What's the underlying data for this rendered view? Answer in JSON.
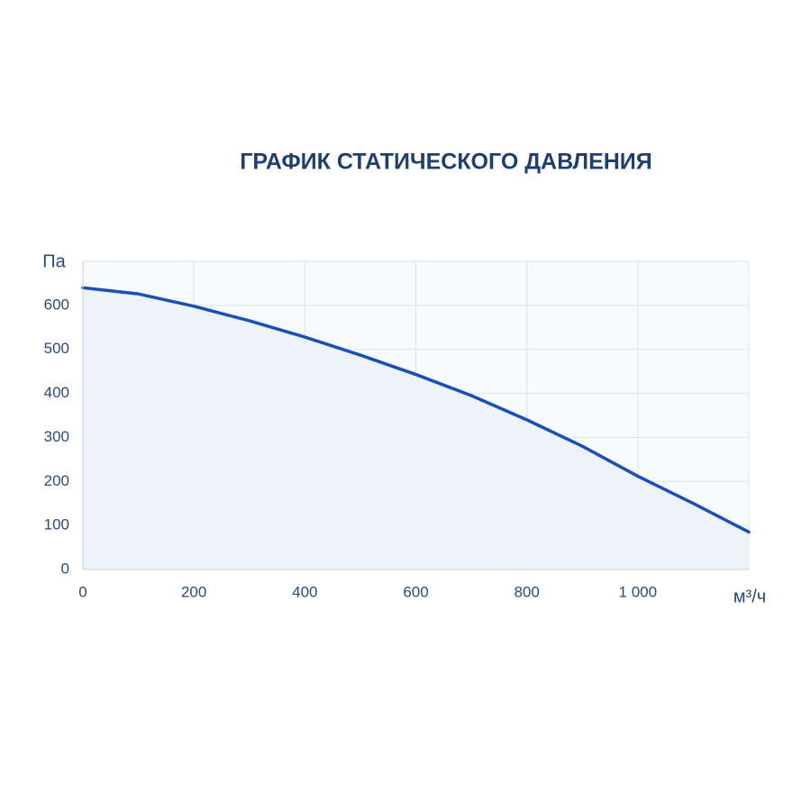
{
  "chart_data": {
    "type": "line",
    "title": "ГРАФИК СТАТИЧЕСКОГО ДАВЛЕНИЯ",
    "y_label": "Па",
    "x_label": "м³/ч",
    "x": [
      0,
      100,
      200,
      300,
      400,
      500,
      600,
      700,
      800,
      900,
      1000,
      1100,
      1200
    ],
    "series": [
      {
        "color": "#1a4fb5",
        "values": [
          640,
          626,
          598,
          565,
          528,
          487,
          443,
          395,
          340,
          280,
          212,
          150,
          85
        ]
      }
    ],
    "xlim": [
      0,
      1200
    ],
    "xticks": [
      0,
      200,
      400,
      600,
      800,
      {
        "value": 1000,
        "label": "1 000"
      }
    ],
    "ylim": [
      0,
      700
    ],
    "yticks": [
      0,
      100,
      200,
      300,
      400,
      500,
      600
    ],
    "grid": true,
    "fill_color": "#eef3fa"
  }
}
